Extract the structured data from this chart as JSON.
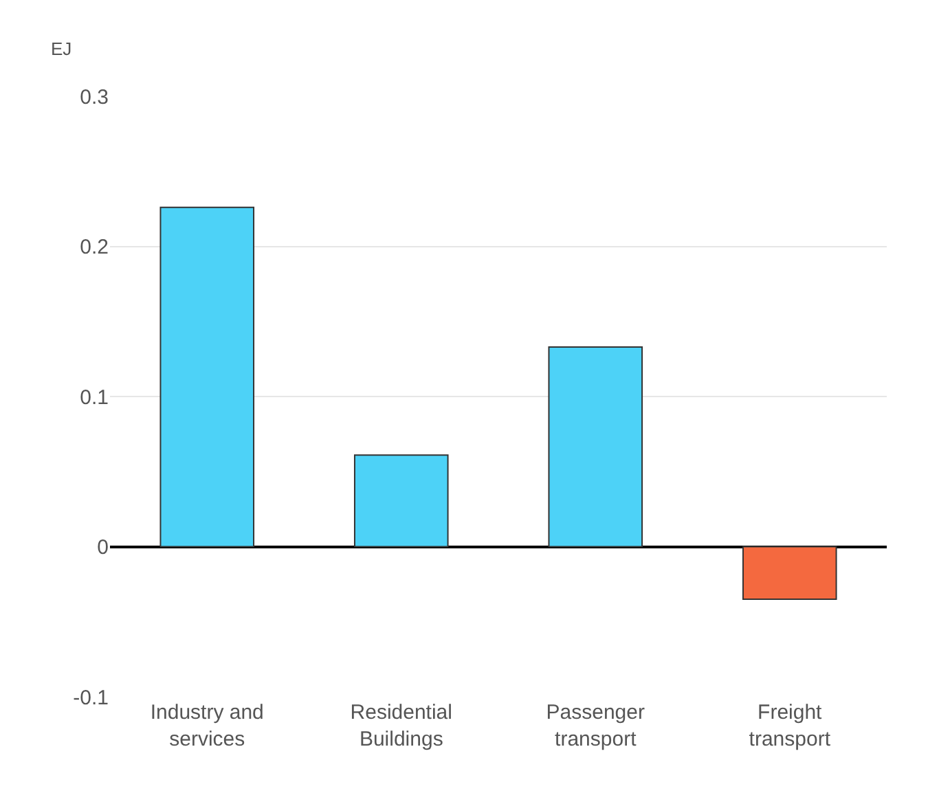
{
  "chart_data": {
    "type": "bar",
    "ylabel": "EJ",
    "categories": [
      "Industry and services",
      "Residential Buildings",
      "Passenger transport",
      "Freight transport"
    ],
    "values": [
      0.226,
      0.061,
      0.133,
      -0.035
    ],
    "colors": [
      "#4dd2f7",
      "#4dd2f7",
      "#4dd2f7",
      "#f4693f"
    ],
    "ylim": [
      -0.1,
      0.3
    ],
    "yticks": [
      {
        "value": -0.1,
        "label": "-0.1"
      },
      0,
      0.1,
      0.2,
      0.3
    ],
    "grid": "y"
  }
}
